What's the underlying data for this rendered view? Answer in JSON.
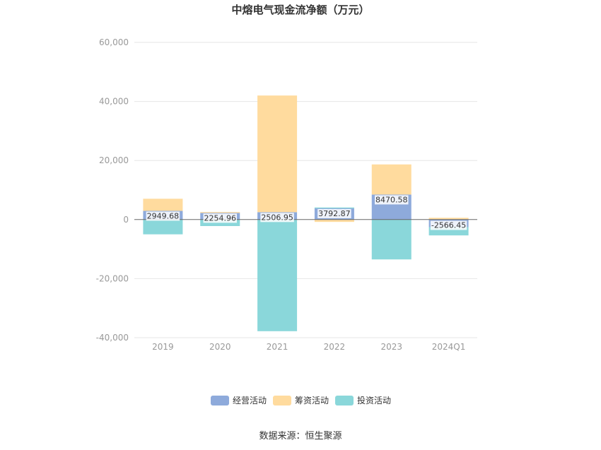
{
  "chart_data": {
    "type": "bar",
    "stacked": true,
    "title": "中熔电气现金流净额（万元）",
    "categories": [
      "2019",
      "2020",
      "2021",
      "2022",
      "2023",
      "2024Q1"
    ],
    "series": [
      {
        "name": "经营活动",
        "color": "#8eaadb",
        "values": [
          2949.68,
          2254.96,
          2506.95,
          3792.87,
          8470.58,
          -2566.45
        ]
      },
      {
        "name": "筹资活动",
        "color": "#ffdb9e",
        "values": [
          4100,
          300,
          39500,
          -800,
          10200,
          600
        ]
      },
      {
        "name": "投资活动",
        "color": "#8ad7da",
        "values": [
          -5000,
          -2200,
          -37800,
          300,
          -13500,
          -2800
        ]
      }
    ],
    "data_labels": [
      "2949.68",
      "2254.96",
      "2506.95",
      "3792.87",
      "8470.58",
      "-2566.45"
    ],
    "ylim": [
      -40000,
      60000
    ],
    "yticks": [
      -40000,
      -20000,
      0,
      20000,
      40000,
      60000
    ],
    "ytick_labels": [
      "-40,000",
      "-20,000",
      "0",
      "20,000",
      "40,000",
      "60,000"
    ],
    "grid": true,
    "legend_position": "bottom"
  },
  "source_text": "数据来源：恒生聚源"
}
